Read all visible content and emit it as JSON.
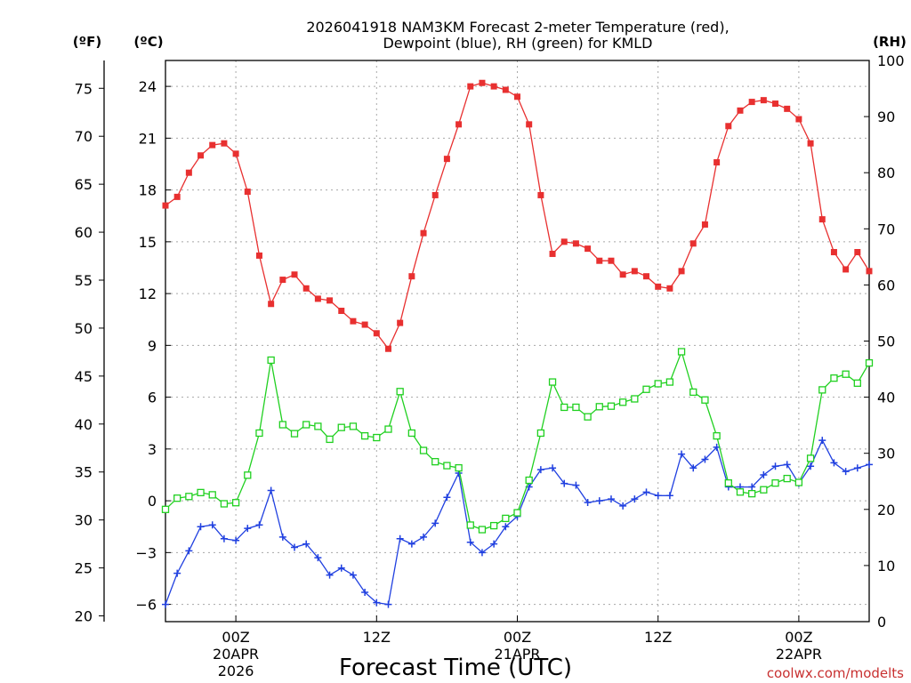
{
  "chart_data": {
    "type": "line",
    "title_line1": "2026041918 NAM3KM Forecast 2-meter Temperature (red),",
    "title_line2": "Dewpoint (blue), RH (green) for KMLD",
    "xlabel": "Forecast Time (UTC)",
    "watermark": "coolwx.com/modelts",
    "unit_f": "(ºF)",
    "unit_c": "(ºC)",
    "unit_rh": "(RH)",
    "x_range_hours": [
      -4,
      56
    ],
    "c_range": [
      -7,
      25.5
    ],
    "rh_range": [
      0,
      100
    ],
    "f_ticks": [
      "20",
      "25",
      "30",
      "35",
      "40",
      "45",
      "50",
      "55",
      "60",
      "65",
      "70",
      "75"
    ],
    "c_ticks": [
      "−6",
      "−3",
      "0",
      "3",
      "6",
      "9",
      "12",
      "15",
      "18",
      "21",
      "24"
    ],
    "rh_ticks": [
      "0",
      "10",
      "20",
      "30",
      "40",
      "50",
      "60",
      "70",
      "80",
      "90",
      "100"
    ],
    "x_ticks": [
      {
        "hour": 2,
        "label1": "00Z",
        "label2": "20APR",
        "label3": "2026"
      },
      {
        "hour": 14,
        "label1": "12Z",
        "label2": "",
        "label3": ""
      },
      {
        "hour": 26,
        "label1": "00Z",
        "label2": "21APR",
        "label3": ""
      },
      {
        "hour": 38,
        "label1": "12Z",
        "label2": "",
        "label3": ""
      },
      {
        "hour": 50,
        "label1": "00Z",
        "label2": "22APR",
        "label3": ""
      }
    ],
    "series": [
      {
        "name": "Temperature (°C)",
        "color": "#e83030",
        "marker": "square-filled",
        "axis": "c",
        "values": [
          17.1,
          17.6,
          19,
          20,
          20.6,
          20.7,
          20.1,
          17.9,
          14.2,
          11.4,
          12.8,
          13.1,
          12.3,
          11.7,
          11.6,
          11,
          10.4,
          10.2,
          9.7,
          8.8,
          10.3,
          13,
          15.5,
          17.7,
          19.8,
          21.8,
          24,
          24.2,
          24,
          23.8,
          23.4,
          21.8,
          17.7,
          14.3,
          15,
          14.9,
          14.6,
          13.9,
          13.9,
          13.1,
          13.3,
          13,
          12.4,
          12.3,
          13.3,
          14.9,
          16,
          19.6,
          21.7,
          22.6,
          23.1,
          23.2,
          23,
          22.7,
          22.1,
          20.7,
          16.3,
          14.4,
          13.4,
          14.4,
          13.3
        ]
      },
      {
        "name": "Dewpoint (°C)",
        "color": "#2040e0",
        "marker": "plus",
        "axis": "c",
        "values": [
          -6,
          -4.2,
          -2.9,
          -1.5,
          -1.4,
          -2.2,
          -2.3,
          -1.6,
          -1.4,
          0.6,
          -2.1,
          -2.7,
          -2.5,
          -3.3,
          -4.3,
          -3.9,
          -4.3,
          -5.3,
          -5.9,
          -6,
          -2.2,
          -2.5,
          -2.1,
          -1.3,
          0.2,
          1.6,
          -2.4,
          -3,
          -2.5,
          -1.5,
          -0.9,
          0.8,
          1.8,
          1.9,
          1,
          0.9,
          -0.1,
          0,
          0.1,
          -0.3,
          0.1,
          0.5,
          0.3,
          0.3,
          2.7,
          1.9,
          2.4,
          3.1,
          0.8,
          0.8,
          0.8,
          1.5,
          2,
          2.1,
          1,
          2,
          3.5,
          2.2,
          1.7,
          1.9,
          2.1
        ]
      },
      {
        "name": "RH (%)",
        "color": "#20d020",
        "marker": "square-open",
        "axis": "rh",
        "values": [
          20,
          22,
          22.3,
          23,
          22.6,
          21,
          21.2,
          26.1,
          33.6,
          46.6,
          35.1,
          33.5,
          35.1,
          34.8,
          32.5,
          34.6,
          34.8,
          33.1,
          32.8,
          34.3,
          41,
          33.6,
          30.5,
          28.5,
          27.8,
          27.4,
          17.2,
          16.4,
          17.1,
          18.4,
          19.4,
          25.2,
          33.6,
          42.7,
          38.2,
          38.2,
          36.5,
          38.3,
          38.4,
          39.1,
          39.7,
          41.4,
          42.4,
          42.7,
          48.1,
          40.9,
          39.5,
          33.1,
          24.7,
          23.1,
          22.8,
          23.5,
          24.7,
          25.5,
          24.8,
          29.1,
          41.3,
          43.4,
          44.1,
          42.5,
          46.1
        ]
      }
    ]
  }
}
